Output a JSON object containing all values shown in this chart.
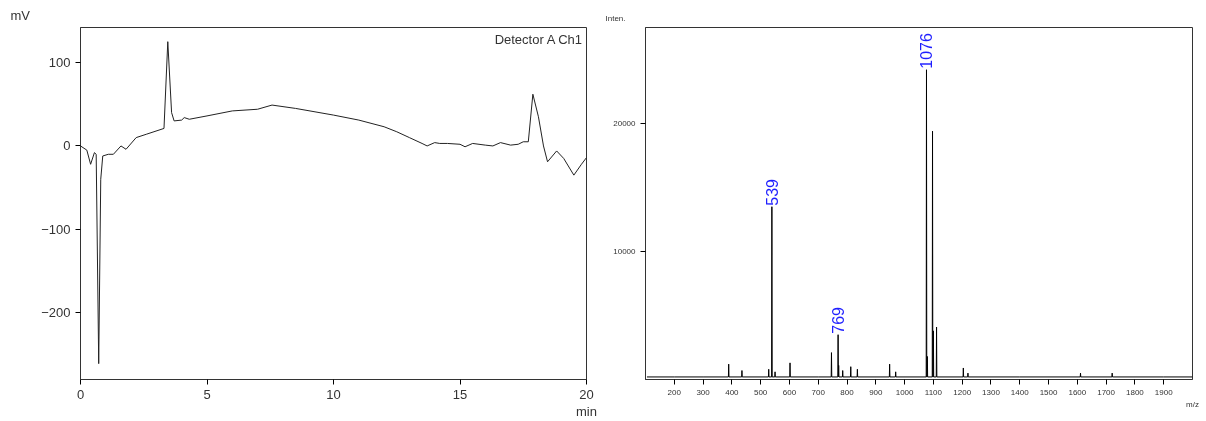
{
  "chart_data": [
    {
      "type": "line",
      "xlabel": "min",
      "ylabel": "mV",
      "xlim": [
        0,
        20
      ],
      "ylim": [
        -280,
        142
      ],
      "xticks": [
        0,
        5,
        10,
        15,
        20
      ],
      "yticks": [
        -200,
        -100,
        0,
        100
      ],
      "grid": false,
      "annotations": [
        "Detector A Ch1"
      ],
      "series": [
        {
          "color": "#222222",
          "x": [
            0,
            0.25,
            0.4,
            0.55,
            0.62,
            0.72,
            0.8,
            0.88,
            1.1,
            1.3,
            1.6,
            1.8,
            2.2,
            2.6,
            3.3,
            3.45,
            3.6,
            3.7,
            4.0,
            4.1,
            4.3,
            5,
            6,
            7,
            7.57,
            8.5,
            10,
            11,
            12,
            12.5,
            13,
            13.5,
            13.7,
            14,
            14.2,
            14.5,
            15,
            15.2,
            15.5,
            16,
            16.3,
            16.6,
            17,
            17.3,
            17.5,
            17.7,
            17.88,
            18.1,
            18.3,
            18.46,
            18.82,
            19.1,
            19.5,
            19.8,
            20
          ],
          "values": [
            0,
            -5,
            -22,
            -8,
            -10,
            -261,
            -40,
            -12,
            -10,
            -10,
            0,
            -4,
            10,
            14,
            21,
            125,
            40,
            30,
            31,
            34,
            32,
            36,
            42,
            44,
            49,
            45,
            37,
            31,
            23,
            17,
            10,
            3,
            0,
            4,
            3,
            3,
            2,
            -1,
            3,
            1,
            0,
            4,
            1,
            2,
            5,
            5,
            62,
            35,
            0,
            -19,
            -6,
            -15,
            -35,
            -22,
            -14
          ]
        }
      ]
    },
    {
      "type": "line",
      "xlabel": "m/z",
      "ylabel": "Inten.",
      "xlim": [
        100,
        2000
      ],
      "ylim": [
        0,
        27500
      ],
      "xticks": [
        200,
        300,
        400,
        500,
        600,
        700,
        800,
        900,
        1000,
        1100,
        1200,
        1300,
        1400,
        1500,
        1600,
        1700,
        1800,
        1900
      ],
      "yticks": [
        10000,
        20000
      ],
      "grid": false,
      "annotations": [
        {
          "text": "539",
          "x": 539,
          "y": 13500
        },
        {
          "text": "769",
          "x": 769,
          "y": 3500
        },
        {
          "text": "1076",
          "x": 1076,
          "y": 24200
        }
      ],
      "series": [
        {
          "color": "#000000",
          "x": [
            105,
            200,
            300,
            388,
            389,
            390,
            434,
            435,
            436,
            527,
            528,
            529,
            538,
            539,
            540,
            549,
            550,
            551,
            601,
            602,
            603,
            700,
            745,
            746,
            747,
            768,
            769,
            770,
            771,
            772,
            784,
            785,
            786,
            812,
            813,
            814,
            835,
            836,
            837,
            947,
            948,
            949,
            968,
            969,
            970,
            1075,
            1076,
            1077,
            1078,
            1079,
            1080,
            1096,
            1097,
            1098,
            1099,
            1100,
            1101,
            1110,
            1111,
            1112,
            1203,
            1204,
            1205,
            1219,
            1220,
            1221,
            1400,
            1610,
            1611,
            1612,
            1720,
            1721,
            1722,
            1900,
            2000
          ],
          "values": [
            200,
            200,
            200,
            200,
            1200,
            200,
            200,
            700,
            200,
            200,
            800,
            200,
            200,
            13500,
            200,
            200,
            600,
            200,
            200,
            1300,
            200,
            200,
            200,
            2100,
            200,
            200,
            3500,
            200,
            1100,
            200,
            200,
            700,
            200,
            200,
            1000,
            200,
            200,
            800,
            200,
            200,
            1200,
            200,
            200,
            600,
            200,
            200,
            24200,
            200,
            200,
            1800,
            200,
            200,
            19400,
            200,
            200,
            3800,
            200,
            200,
            4100,
            200,
            200,
            900,
            200,
            200,
            500,
            200,
            200,
            200,
            500,
            200,
            200,
            500,
            200,
            200,
            200
          ]
        }
      ]
    }
  ]
}
